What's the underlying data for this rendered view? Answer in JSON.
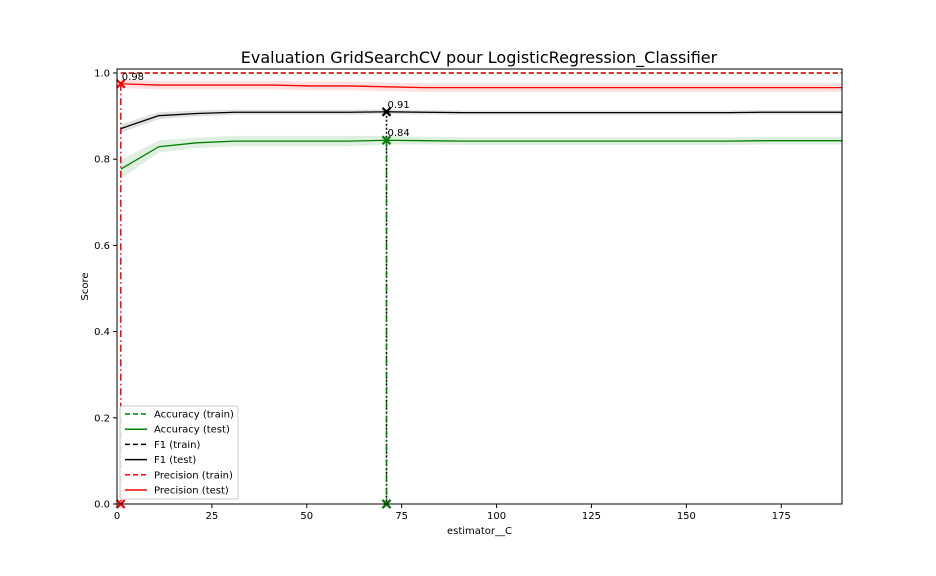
{
  "chart_data": {
    "type": "line",
    "title": "Evaluation GridSearchCV pour LogisticRegression_Classifier",
    "xlabel": "estimator__C",
    "ylabel": "Score",
    "xlim": [
      0,
      191
    ],
    "ylim": [
      0,
      1.0
    ],
    "xticks": [
      0,
      25,
      50,
      75,
      100,
      125,
      150,
      175
    ],
    "yticks": [
      0.0,
      0.2,
      0.4,
      0.6,
      0.8,
      1.0
    ],
    "grid": false,
    "legend_position": "lower-left",
    "x": [
      1,
      11,
      21,
      31,
      41,
      51,
      61,
      71,
      81,
      91,
      101,
      111,
      121,
      131,
      141,
      151,
      161,
      171,
      181,
      191
    ],
    "series": [
      {
        "name": "Accuracy (train)",
        "color": "#008000",
        "style": "dashed",
        "values": [
          1,
          1,
          1,
          1,
          1,
          1,
          1,
          1,
          1,
          1,
          1,
          1,
          1,
          1,
          1,
          1,
          1,
          1,
          1,
          1
        ]
      },
      {
        "name": "Accuracy (test)",
        "color": "#008000",
        "style": "solid",
        "values": [
          0.777,
          0.829,
          0.838,
          0.842,
          0.842,
          0.842,
          0.842,
          0.844,
          0.843,
          0.842,
          0.842,
          0.842,
          0.842,
          0.842,
          0.842,
          0.842,
          0.842,
          0.843,
          0.843,
          0.843
        ],
        "band": [
          0.022,
          0.014,
          0.012,
          0.012,
          0.012,
          0.012,
          0.012,
          0.01,
          0.009,
          0.009,
          0.009,
          0.009,
          0.009,
          0.009,
          0.009,
          0.009,
          0.009,
          0.009,
          0.009,
          0.009
        ]
      },
      {
        "name": "F1 (train)",
        "color": "#000000",
        "style": "dashed",
        "values": [
          1,
          1,
          1,
          1,
          1,
          1,
          1,
          1,
          1,
          1,
          1,
          1,
          1,
          1,
          1,
          1,
          1,
          1,
          1,
          1
        ]
      },
      {
        "name": "F1 (test)",
        "color": "#000000",
        "style": "solid",
        "values": [
          0.871,
          0.901,
          0.906,
          0.909,
          0.909,
          0.909,
          0.909,
          0.91,
          0.909,
          0.908,
          0.908,
          0.908,
          0.908,
          0.908,
          0.908,
          0.908,
          0.908,
          0.909,
          0.909,
          0.909
        ],
        "band": [
          0.01,
          0.008,
          0.007,
          0.006,
          0.006,
          0.006,
          0.006,
          0.005,
          0.005,
          0.005,
          0.005,
          0.005,
          0.005,
          0.005,
          0.005,
          0.005,
          0.005,
          0.005,
          0.005,
          0.005
        ]
      },
      {
        "name": "Precision (train)",
        "color": "#ff0000",
        "style": "dashed",
        "values": [
          1,
          1,
          1,
          1,
          1,
          1,
          1,
          1,
          1,
          1,
          1,
          1,
          1,
          1,
          1,
          1,
          1,
          1,
          1,
          1
        ]
      },
      {
        "name": "Precision (test)",
        "color": "#ff0000",
        "style": "solid",
        "values": [
          0.975,
          0.972,
          0.972,
          0.972,
          0.972,
          0.97,
          0.97,
          0.968,
          0.966,
          0.966,
          0.966,
          0.966,
          0.966,
          0.966,
          0.966,
          0.966,
          0.966,
          0.966,
          0.966,
          0.966
        ],
        "band": [
          0.01,
          0.01,
          0.01,
          0.01,
          0.01,
          0.01,
          0.01,
          0.01,
          0.01,
          0.01,
          0.01,
          0.01,
          0.01,
          0.01,
          0.01,
          0.01,
          0.01,
          0.01,
          0.01,
          0.01
        ]
      }
    ],
    "best_points": [
      {
        "series": "Precision (test)",
        "x": 1,
        "y": 0.975,
        "label": "0.98",
        "color": "#ff0000",
        "vline_style": "dashdot"
      },
      {
        "series": "F1 (test)",
        "x": 71,
        "y": 0.91,
        "label": "0.91",
        "color": "#000000",
        "vline_style": "dotted"
      },
      {
        "series": "Accuracy (test)",
        "x": 71,
        "y": 0.844,
        "label": "0.84",
        "color": "#008000",
        "vline_style": "dashdot"
      }
    ]
  }
}
